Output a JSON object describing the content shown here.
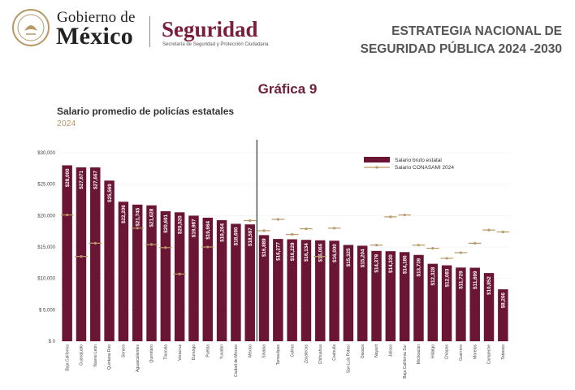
{
  "header": {
    "gov_line1": "Gobierno de",
    "gov_line2": "México",
    "agency": "Seguridad",
    "agency_sub": "Secretaría de Seguridad y Protección Ciudadana",
    "strategy_line1": "ESTRATEGIA NACIONAL DE",
    "strategy_line2": "SEGURIDAD PÚBLICA 2024 -2030"
  },
  "figure_label": "Gráfica 9",
  "colors": {
    "bar": "#6b1535",
    "marker": "#b89968",
    "divider": "#2f4a3c",
    "accent": "#7b1e3c"
  },
  "chart_data": {
    "type": "bar",
    "title": "Salario promedio de policías estatales",
    "subtitle": "2024",
    "ylim": [
      0,
      30000
    ],
    "yticks": [
      0,
      5000,
      10000,
      15000,
      20000,
      25000,
      30000
    ],
    "ytick_labels": [
      "$ 0",
      "$ 5,000",
      "$10,000",
      "$15,000",
      "$20,000",
      "$25,000",
      "$30,000"
    ],
    "legend_position": "top-right",
    "categories": [
      "Baja California",
      "Guanajuato",
      "Nuevo León",
      "Quintana Roo",
      "Sonora",
      "Aguascalientes",
      "Querétaro",
      "Tlaxcala",
      "Veracruz",
      "Durango",
      "Puebla",
      "Yucatán",
      "Ciudad de México",
      "México",
      "Sinaloa",
      "Tamaulipas",
      "Colima",
      "Zacatecas",
      "Chihuahua",
      "Coahuila",
      "San Luis Potosí",
      "Oaxaca",
      "Nayarit",
      "Jalisco",
      "Baja California Sur",
      "Michoacán",
      "Hidalgo",
      "Chiapas",
      "Guerrero",
      "Morelos",
      "Campeche",
      "Tabasco"
    ],
    "series": [
      {
        "name": "Salario bruto estatal",
        "values": [
          28000,
          27671,
          27667,
          25569,
          22206,
          21745,
          21628,
          20691,
          20520,
          19987,
          19664,
          19264,
          18690,
          18597,
          16889,
          16277,
          16229,
          16134,
          16066,
          16000,
          15325,
          15204,
          14379,
          14330,
          14186,
          13739,
          12328,
          12083,
          11729,
          11699,
          10852,
          8266
        ],
        "labels": [
          "$28,000",
          "$27,671",
          "$27,667",
          "$25,569",
          "$22,206",
          "$21,745",
          "$21,628",
          "$20,691",
          "$20,520",
          "$19,987",
          "$19,664",
          "$19,264",
          "$18,690",
          "$18,597",
          "$16,889",
          "$16,277",
          "$16,229",
          "$16,134",
          "$16,066",
          "$16,000",
          "$15,325",
          "$15,204",
          "$14,379",
          "$14,330",
          "$14,186",
          "$13,739",
          "$12,328",
          "$12,083",
          "$11,729",
          "$11,699",
          "$10,852",
          "$8,266"
        ]
      },
      {
        "name": "Salario CONASAMI 2024",
        "values": [
          20100,
          13500,
          15600,
          null,
          null,
          18000,
          15400,
          14900,
          10700,
          null,
          15000,
          null,
          null,
          19200,
          17600,
          19400,
          17000,
          17900,
          13500,
          18000,
          null,
          null,
          15300,
          19800,
          20100,
          15300,
          14800,
          13200,
          14100,
          15600,
          17700,
          17400
        ]
      }
    ],
    "divider_after_category": "México"
  }
}
